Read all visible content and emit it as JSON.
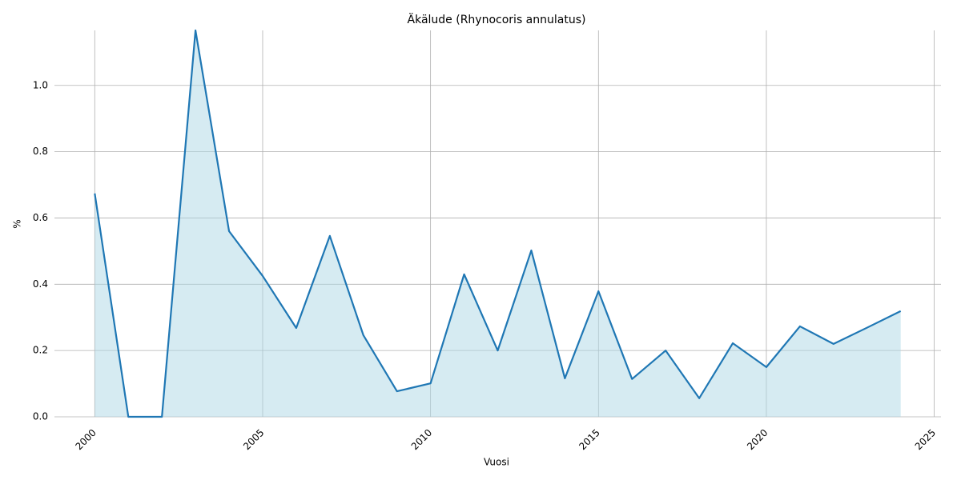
{
  "chart_data": {
    "type": "area_line",
    "title": "Äkälude (Rhynocoris annulatus)",
    "x_label": "Vuosi",
    "y_label": "%",
    "x": [
      2000,
      2001,
      2002,
      2003,
      2004,
      2005,
      2006,
      2007,
      2008,
      2009,
      2010,
      2011,
      2012,
      2013,
      2014,
      2015,
      2016,
      2017,
      2018,
      2019,
      2020,
      2021,
      2022,
      2023,
      2024
    ],
    "values": [
      0.674,
      0,
      0,
      1.166,
      0.56,
      0.425,
      0.268,
      0.546,
      0.246,
      0.077,
      0.101,
      0.43,
      0.2,
      0.502,
      0.116,
      0.379,
      0.114,
      0.2,
      0.056,
      0.222,
      0.15,
      0.273,
      0.22,
      0.269,
      0.319
    ],
    "color": "#1f77b4",
    "fill_color": "#add8e6",
    "xlim": [
      1998.8,
      2025.2
    ],
    "xticks": [
      2000,
      2005,
      2010,
      2015,
      2020,
      2025
    ],
    "ylim": [
      0,
      1.166
    ],
    "yticks": [
      {
        "value": 0,
        "label": "0.0"
      },
      0.2,
      0.4,
      0.6,
      0.8,
      {
        "value": 1,
        "label": "1.0"
      }
    ],
    "grid": true
  }
}
